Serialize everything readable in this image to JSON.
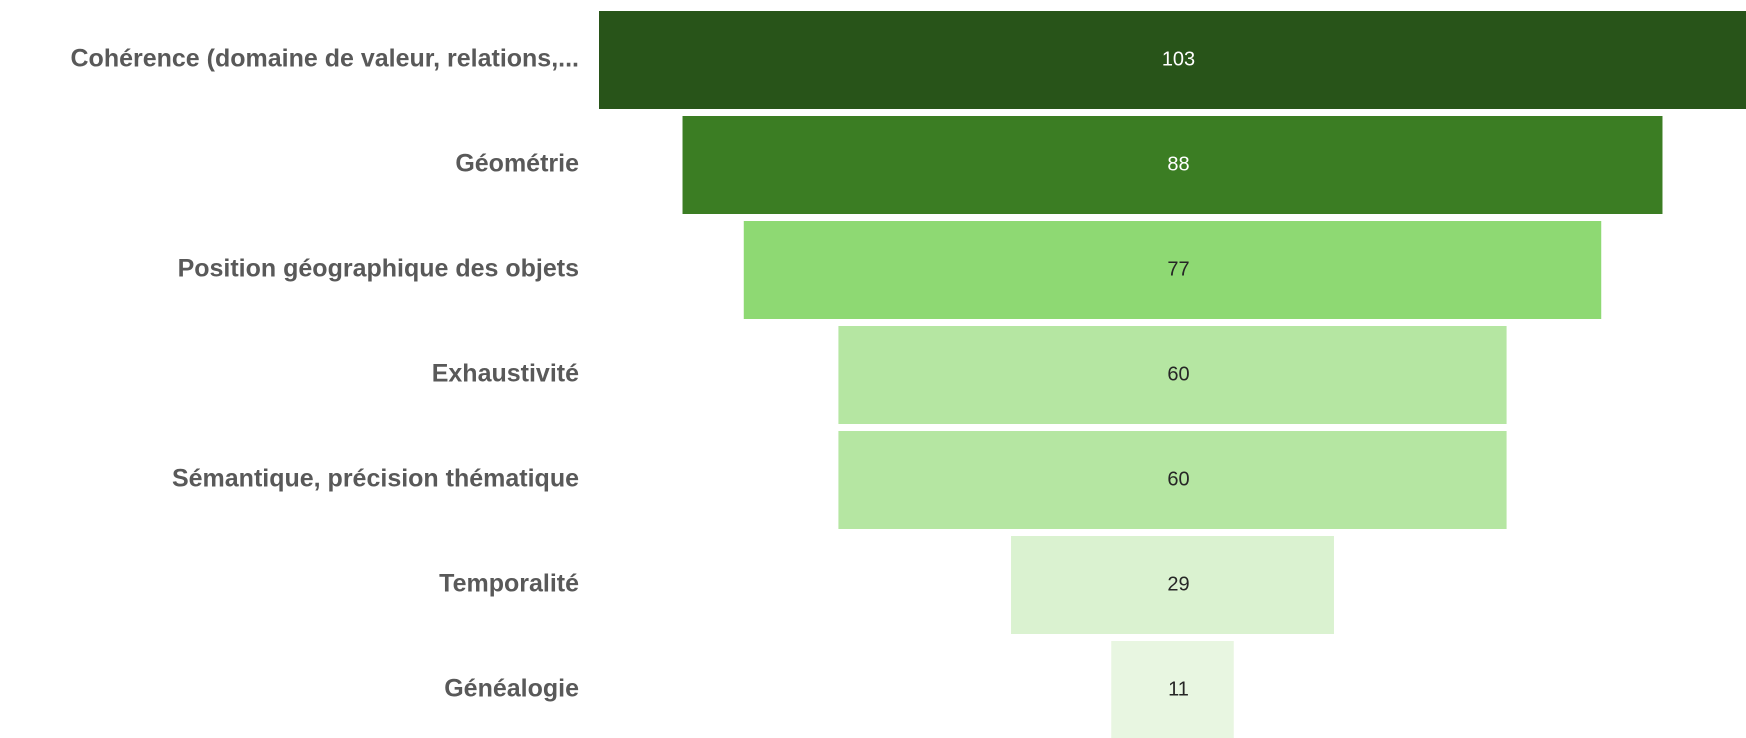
{
  "chart_data": {
    "type": "funnel",
    "categories": [
      "Cohérence (domaine de valeur, relations,...",
      "Géométrie",
      "Position géographique des objets",
      "Exhaustivité",
      "Sémantique, précision thématique",
      "Temporalité",
      "Généalogie"
    ],
    "values": [
      103,
      88,
      77,
      60,
      60,
      29,
      11
    ],
    "colors": [
      "#285419",
      "#3b7d23",
      "#8ed973",
      "#b5e6a2",
      "#b5e6a2",
      "#daf2d0",
      "#e8f6e1"
    ],
    "label_colors": [
      "#ffffff",
      "#ffffff",
      "#262626",
      "#262626",
      "#262626",
      "#262626",
      "#262626"
    ]
  }
}
